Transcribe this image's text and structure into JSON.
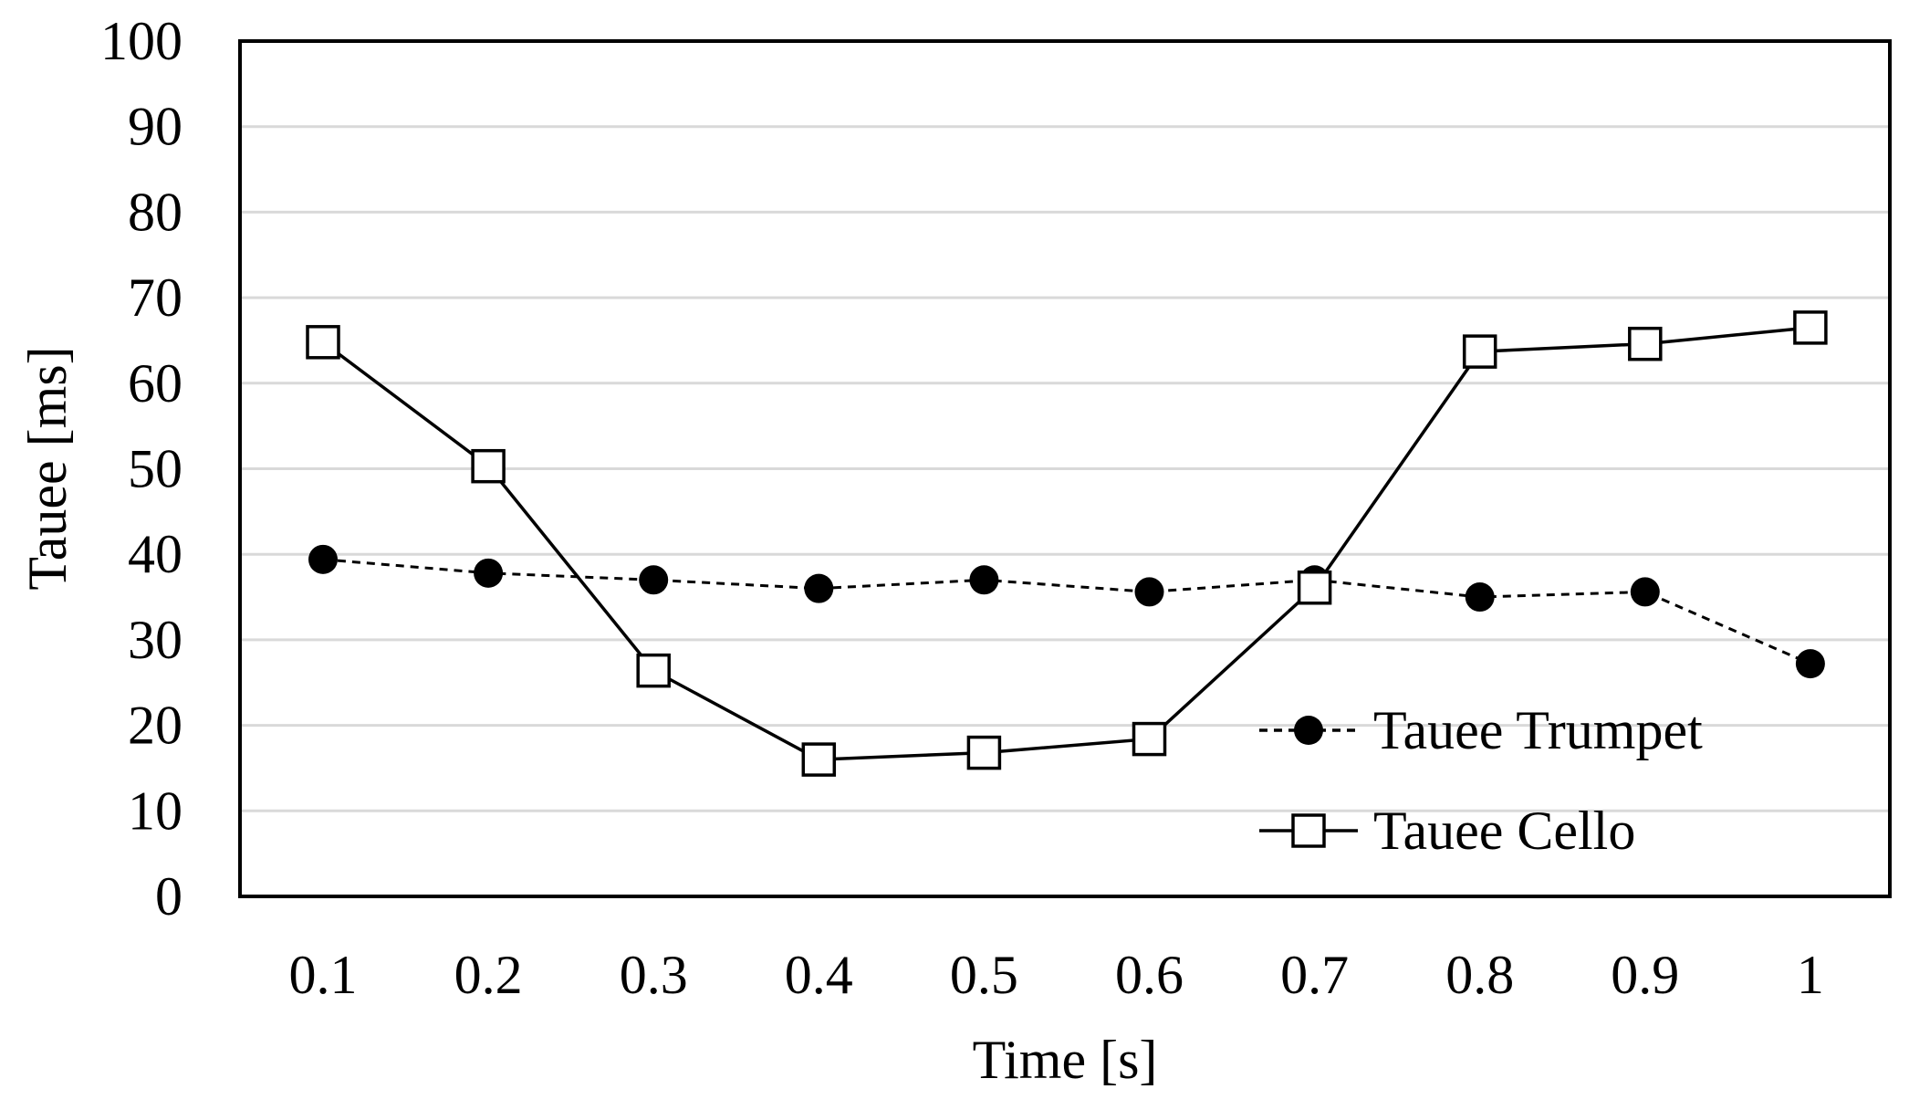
{
  "chart_data": {
    "type": "line",
    "title": "",
    "xlabel": "Time [s]",
    "ylabel": "Tauee [ms]",
    "categories": [
      "0.1",
      "0.2",
      "0.3",
      "0.4",
      "0.5",
      "0.6",
      "0.7",
      "0.8",
      "0.9",
      "1"
    ],
    "ylim": [
      0,
      100
    ],
    "yticks": [
      0,
      10,
      20,
      30,
      40,
      50,
      60,
      70,
      80,
      90,
      100
    ],
    "grid": true,
    "legend_position": "bottom-right",
    "series": [
      {
        "name": "Tauee Trumpet",
        "marker": "filled-circle",
        "line_style": "dashed",
        "color": "#000000",
        "values": [
          39.4,
          37.8,
          37.0,
          36.0,
          37.0,
          35.6,
          37.0,
          35.0,
          35.6,
          27.2
        ]
      },
      {
        "name": "Tauee Cello",
        "marker": "open-square",
        "line_style": "solid",
        "color": "#000000",
        "values": [
          64.8,
          50.3,
          26.4,
          16.0,
          16.8,
          18.4,
          36.1,
          63.7,
          64.6,
          66.5
        ]
      }
    ]
  }
}
